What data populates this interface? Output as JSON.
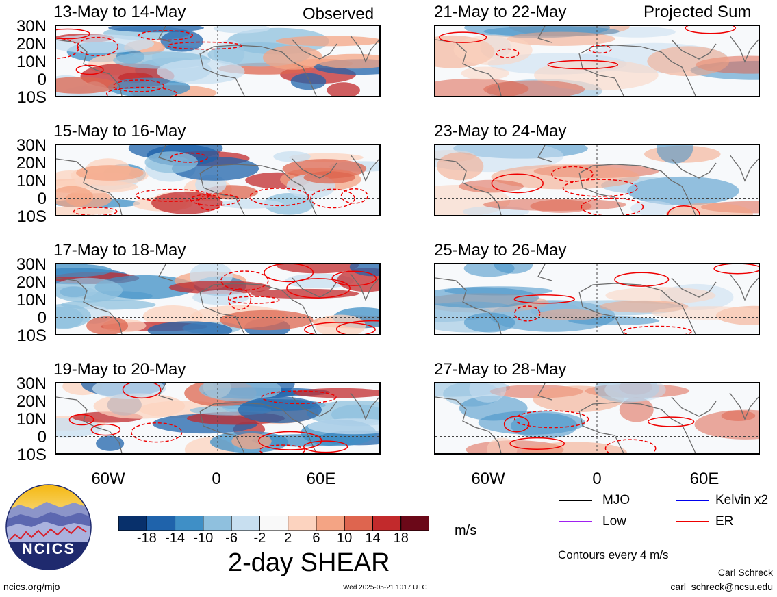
{
  "observed_label": "Observed",
  "projected_label": "Projected Sum",
  "observed_panels": [
    {
      "period": "13-May to 14-May"
    },
    {
      "period": "15-May to 16-May"
    },
    {
      "period": "17-May to 18-May"
    },
    {
      "period": "19-May to 20-May"
    }
  ],
  "projected_panels": [
    {
      "period": "21-May to 22-May"
    },
    {
      "period": "23-May to 24-May"
    },
    {
      "period": "25-May to 26-May"
    },
    {
      "period": "27-May to 28-May"
    }
  ],
  "lat_labels": [
    "30N",
    "20N",
    "10N",
    "0",
    "10S"
  ],
  "lon_labels": [
    "60W",
    "0",
    "60E"
  ],
  "colorbar": {
    "title": "2-day SHEAR",
    "units": "m/s",
    "ticks": [
      "-18",
      "-14",
      "-10",
      "-6",
      "-2",
      "2",
      "6",
      "10",
      "14",
      "18"
    ],
    "colors": [
      "#08306b",
      "#1f63ab",
      "#3f8fc6",
      "#8fc0de",
      "#c8dff0",
      "#f9f9f9",
      "#fcd3bf",
      "#f4a484",
      "#de654f",
      "#c22a2c",
      "#6b0818"
    ]
  },
  "legend": {
    "items": [
      {
        "label": "MJO",
        "color": "#000000"
      },
      {
        "label": "Kelvin x2",
        "color": "#0000ee"
      },
      {
        "label": "Low",
        "color": "#a020f0"
      },
      {
        "label": "ER",
        "color": "#ee0000"
      }
    ],
    "contour_note": "Contours every 4 m/s"
  },
  "logo_text": "NCICS",
  "footer": {
    "url": "ncics.org/mjo",
    "timestamp": "Wed 2025-05-21 1017 UTC",
    "author": "Carl Schreck",
    "email": "carl_schreck@ncsu.edu"
  }
}
